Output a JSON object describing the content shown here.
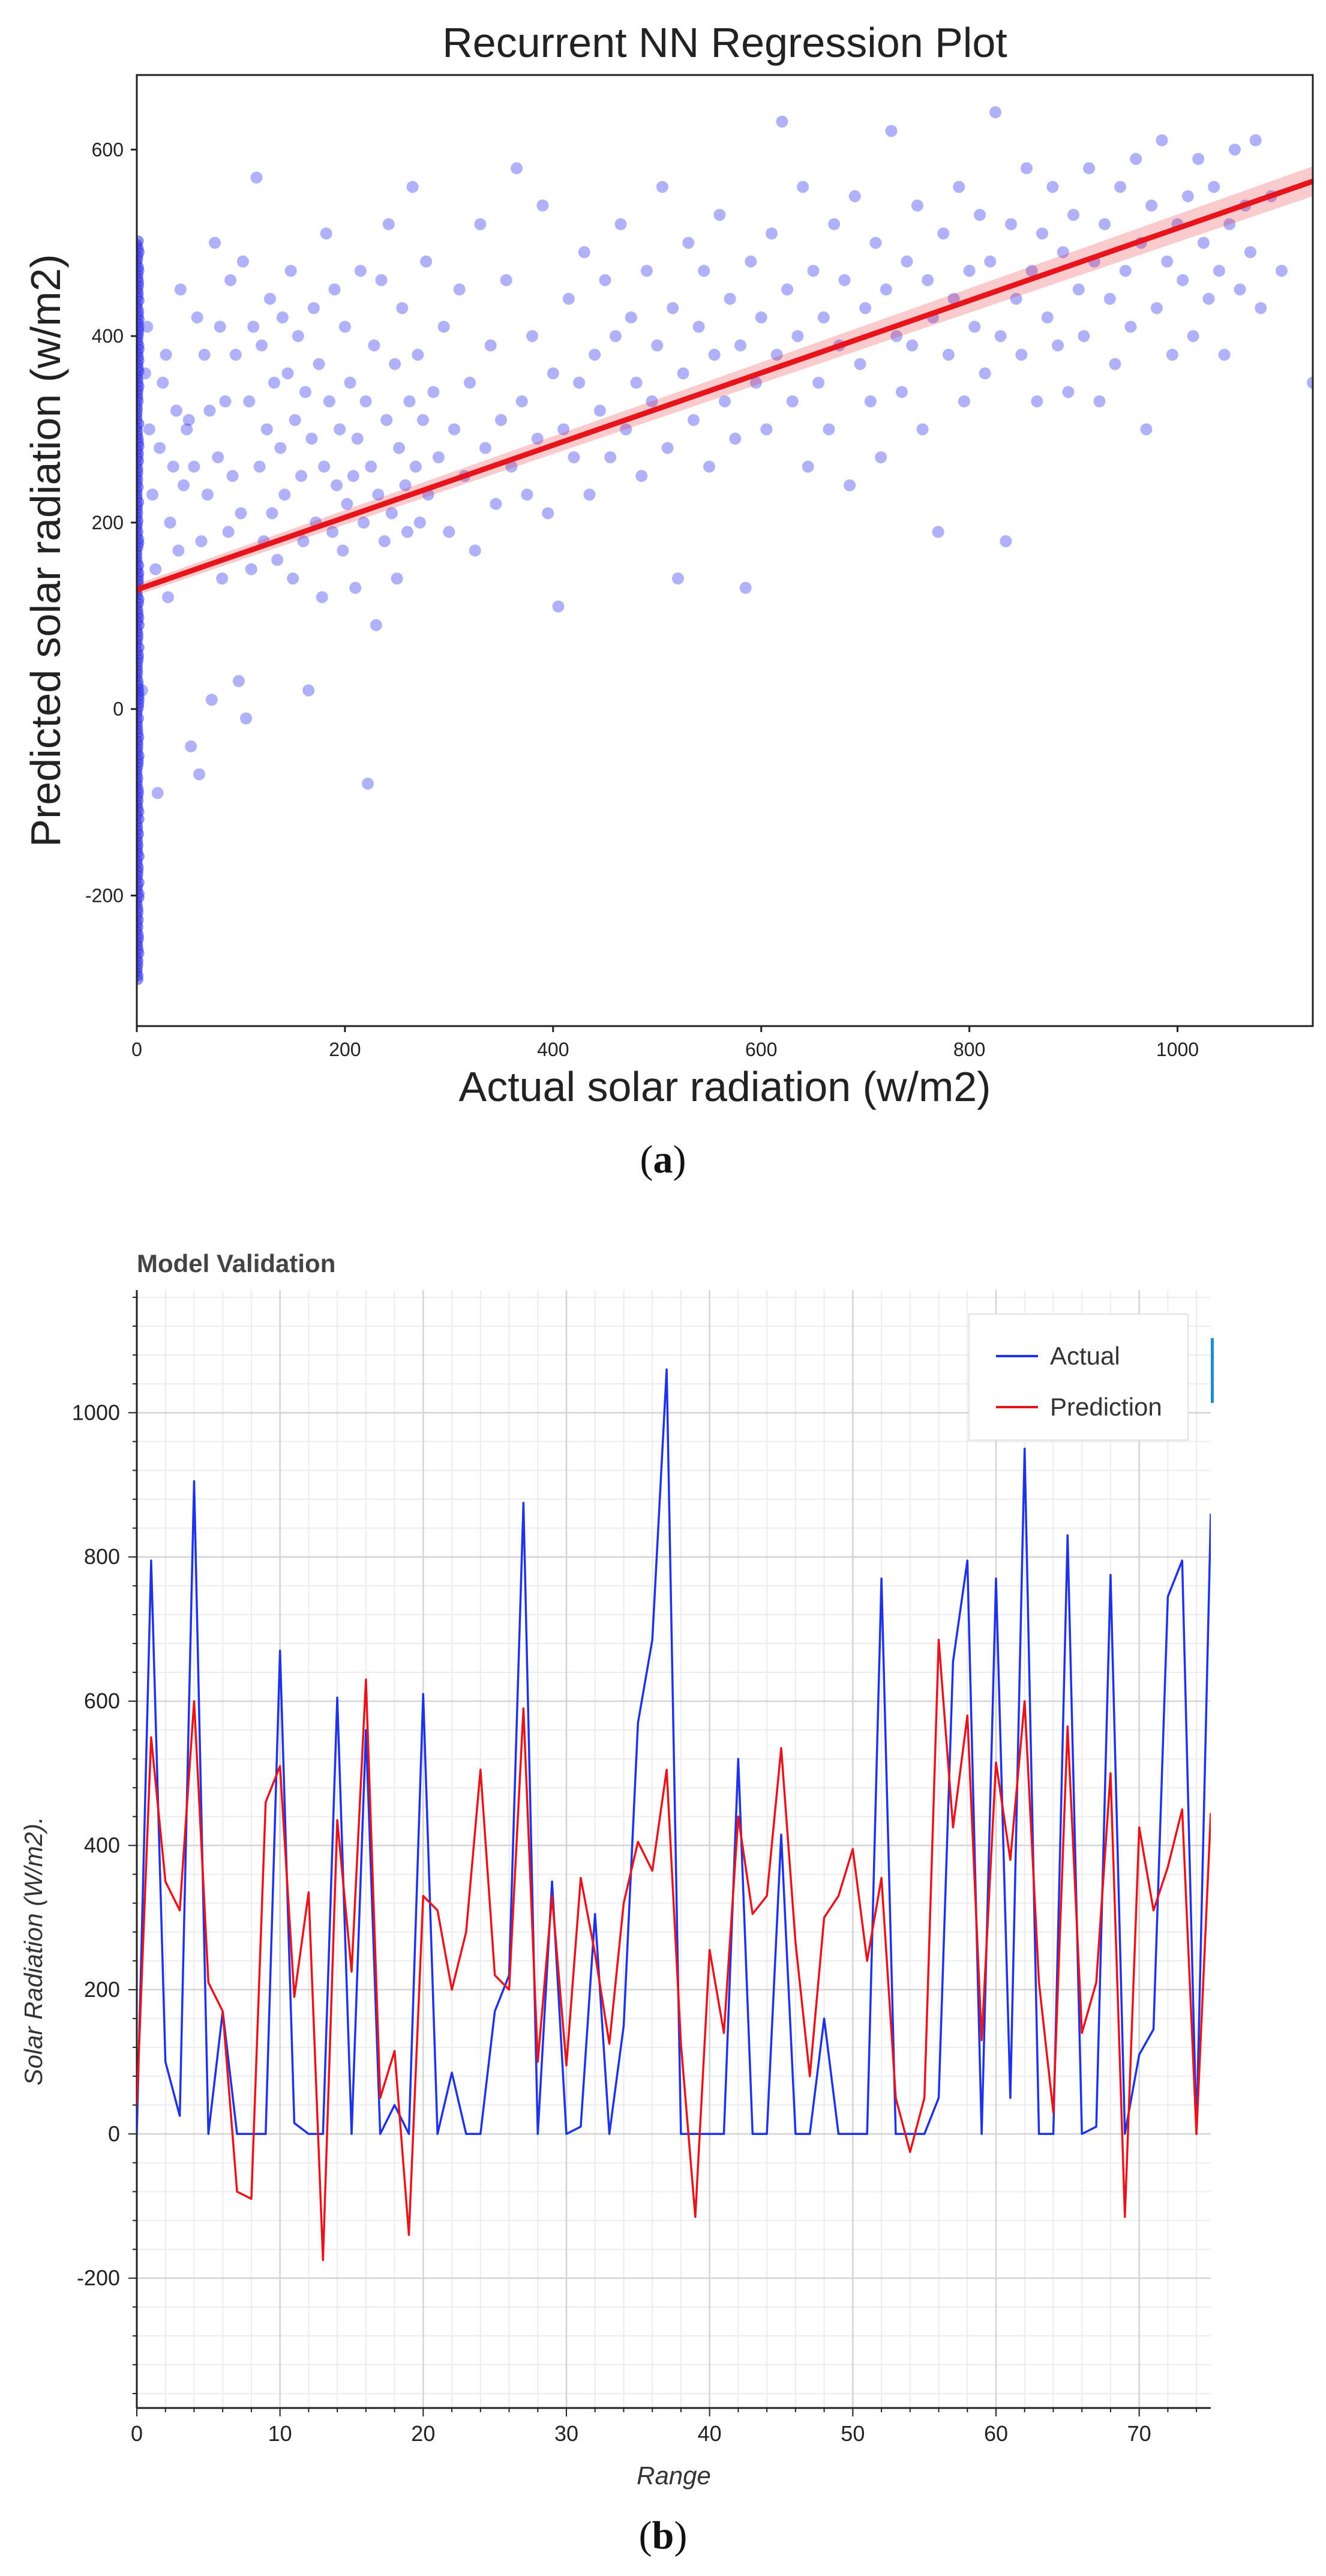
{
  "panels": {
    "a": {
      "label": "a"
    },
    "b": {
      "label": "b"
    }
  },
  "chart_data": [
    {
      "type": "scatter",
      "title": "Recurrent NN Regression Plot",
      "xlabel": "Actual solar radiation (w/m2)",
      "ylabel": "Predicted solar radiation (w/m2)",
      "xlim": [
        0,
        1130
      ],
      "ylim": [
        -340,
        680
      ],
      "xticks": [
        0,
        200,
        400,
        600,
        800,
        1000
      ],
      "yticks": [
        -200,
        0,
        200,
        400,
        600
      ],
      "grid": false,
      "point_color": "#3333ee",
      "regression": {
        "x": [
          0,
          1130
        ],
        "y": [
          128,
          566
        ],
        "color": "#e8141c"
      },
      "zero_column": {
        "x": 0,
        "y_min": -290,
        "y_max": 505
      },
      "points": [
        [
          5,
          20
        ],
        [
          8,
          360
        ],
        [
          10,
          410
        ],
        [
          12,
          300
        ],
        [
          15,
          230
        ],
        [
          18,
          150
        ],
        [
          20,
          -90
        ],
        [
          22,
          280
        ],
        [
          25,
          350
        ],
        [
          28,
          380
        ],
        [
          30,
          120
        ],
        [
          32,
          200
        ],
        [
          35,
          260
        ],
        [
          38,
          320
        ],
        [
          40,
          170
        ],
        [
          42,
          450
        ],
        [
          45,
          240
        ],
        [
          48,
          300
        ],
        [
          50,
          310
        ],
        [
          52,
          -40
        ],
        [
          55,
          260
        ],
        [
          58,
          420
        ],
        [
          60,
          -70
        ],
        [
          62,
          180
        ],
        [
          65,
          380
        ],
        [
          68,
          230
        ],
        [
          70,
          320
        ],
        [
          72,
          10
        ],
        [
          75,
          500
        ],
        [
          78,
          270
        ],
        [
          80,
          410
        ],
        [
          82,
          140
        ],
        [
          85,
          330
        ],
        [
          88,
          190
        ],
        [
          90,
          460
        ],
        [
          92,
          250
        ],
        [
          95,
          380
        ],
        [
          98,
          30
        ],
        [
          100,
          210
        ],
        [
          102,
          480
        ],
        [
          105,
          -10
        ],
        [
          108,
          330
        ],
        [
          110,
          150
        ],
        [
          112,
          410
        ],
        [
          115,
          570
        ],
        [
          118,
          260
        ],
        [
          120,
          390
        ],
        [
          122,
          180
        ],
        [
          125,
          300
        ],
        [
          128,
          440
        ],
        [
          130,
          210
        ],
        [
          132,
          350
        ],
        [
          135,
          160
        ],
        [
          138,
          280
        ],
        [
          140,
          420
        ],
        [
          142,
          230
        ],
        [
          145,
          360
        ],
        [
          148,
          470
        ],
        [
          150,
          140
        ],
        [
          152,
          310
        ],
        [
          155,
          400
        ],
        [
          158,
          250
        ],
        [
          160,
          180
        ],
        [
          162,
          340
        ],
        [
          165,
          20
        ],
        [
          168,
          290
        ],
        [
          170,
          430
        ],
        [
          172,
          200
        ],
        [
          175,
          370
        ],
        [
          178,
          120
        ],
        [
          180,
          260
        ],
        [
          182,
          510
        ],
        [
          185,
          330
        ],
        [
          188,
          190
        ],
        [
          190,
          450
        ],
        [
          192,
          240
        ],
        [
          195,
          300
        ],
        [
          198,
          170
        ],
        [
          200,
          410
        ],
        [
          202,
          220
        ],
        [
          205,
          350
        ],
        [
          208,
          250
        ],
        [
          210,
          130
        ],
        [
          212,
          290
        ],
        [
          215,
          470
        ],
        [
          218,
          200
        ],
        [
          220,
          330
        ],
        [
          222,
          -80
        ],
        [
          225,
          260
        ],
        [
          228,
          390
        ],
        [
          230,
          90
        ],
        [
          232,
          230
        ],
        [
          235,
          460
        ],
        [
          238,
          180
        ],
        [
          240,
          310
        ],
        [
          242,
          520
        ],
        [
          245,
          210
        ],
        [
          248,
          370
        ],
        [
          250,
          140
        ],
        [
          252,
          280
        ],
        [
          255,
          430
        ],
        [
          258,
          240
        ],
        [
          260,
          190
        ],
        [
          262,
          330
        ],
        [
          265,
          560
        ],
        [
          268,
          260
        ],
        [
          270,
          380
        ],
        [
          272,
          200
        ],
        [
          275,
          310
        ],
        [
          278,
          480
        ],
        [
          280,
          230
        ],
        [
          285,
          340
        ],
        [
          290,
          270
        ],
        [
          295,
          410
        ],
        [
          300,
          190
        ],
        [
          305,
          300
        ],
        [
          310,
          450
        ],
        [
          315,
          250
        ],
        [
          320,
          350
        ],
        [
          325,
          170
        ],
        [
          330,
          520
        ],
        [
          335,
          280
        ],
        [
          340,
          390
        ],
        [
          345,
          220
        ],
        [
          350,
          310
        ],
        [
          355,
          460
        ],
        [
          360,
          260
        ],
        [
          365,
          580
        ],
        [
          370,
          330
        ],
        [
          375,
          230
        ],
        [
          380,
          400
        ],
        [
          385,
          290
        ],
        [
          390,
          540
        ],
        [
          395,
          210
        ],
        [
          400,
          360
        ],
        [
          405,
          110
        ],
        [
          410,
          300
        ],
        [
          415,
          440
        ],
        [
          420,
          270
        ],
        [
          425,
          350
        ],
        [
          430,
          490
        ],
        [
          435,
          230
        ],
        [
          440,
          380
        ],
        [
          445,
          320
        ],
        [
          450,
          460
        ],
        [
          455,
          270
        ],
        [
          460,
          400
        ],
        [
          465,
          520
        ],
        [
          470,
          300
        ],
        [
          475,
          420
        ],
        [
          480,
          350
        ],
        [
          485,
          250
        ],
        [
          490,
          470
        ],
        [
          495,
          330
        ],
        [
          500,
          390
        ],
        [
          505,
          560
        ],
        [
          510,
          280
        ],
        [
          515,
          430
        ],
        [
          520,
          140
        ],
        [
          525,
          360
        ],
        [
          530,
          500
        ],
        [
          535,
          310
        ],
        [
          540,
          410
        ],
        [
          545,
          470
        ],
        [
          550,
          260
        ],
        [
          555,
          380
        ],
        [
          560,
          530
        ],
        [
          565,
          330
        ],
        [
          570,
          440
        ],
        [
          575,
          290
        ],
        [
          580,
          390
        ],
        [
          585,
          130
        ],
        [
          590,
          480
        ],
        [
          595,
          350
        ],
        [
          600,
          420
        ],
        [
          605,
          300
        ],
        [
          610,
          510
        ],
        [
          615,
          380
        ],
        [
          620,
          630
        ],
        [
          625,
          450
        ],
        [
          630,
          330
        ],
        [
          635,
          400
        ],
        [
          640,
          560
        ],
        [
          645,
          260
        ],
        [
          650,
          470
        ],
        [
          655,
          350
        ],
        [
          660,
          420
        ],
        [
          665,
          300
        ],
        [
          670,
          520
        ],
        [
          675,
          390
        ],
        [
          680,
          460
        ],
        [
          685,
          240
        ],
        [
          690,
          550
        ],
        [
          695,
          370
        ],
        [
          700,
          430
        ],
        [
          705,
          330
        ],
        [
          710,
          500
        ],
        [
          715,
          270
        ],
        [
          720,
          450
        ],
        [
          725,
          620
        ],
        [
          730,
          400
        ],
        [
          735,
          340
        ],
        [
          740,
          480
        ],
        [
          745,
          390
        ],
        [
          750,
          540
        ],
        [
          755,
          300
        ],
        [
          760,
          460
        ],
        [
          765,
          420
        ],
        [
          770,
          190
        ],
        [
          775,
          510
        ],
        [
          780,
          380
        ],
        [
          785,
          440
        ],
        [
          790,
          560
        ],
        [
          795,
          330
        ],
        [
          800,
          470
        ],
        [
          805,
          410
        ],
        [
          810,
          530
        ],
        [
          815,
          360
        ],
        [
          820,
          480
        ],
        [
          825,
          640
        ],
        [
          830,
          400
        ],
        [
          835,
          180
        ],
        [
          840,
          520
        ],
        [
          845,
          440
        ],
        [
          850,
          380
        ],
        [
          855,
          580
        ],
        [
          860,
          470
        ],
        [
          865,
          330
        ],
        [
          870,
          510
        ],
        [
          875,
          420
        ],
        [
          880,
          560
        ],
        [
          885,
          390
        ],
        [
          890,
          490
        ],
        [
          895,
          340
        ],
        [
          900,
          530
        ],
        [
          905,
          450
        ],
        [
          910,
          400
        ],
        [
          915,
          580
        ],
        [
          920,
          480
        ],
        [
          925,
          330
        ],
        [
          930,
          520
        ],
        [
          935,
          440
        ],
        [
          940,
          370
        ],
        [
          945,
          560
        ],
        [
          950,
          470
        ],
        [
          955,
          410
        ],
        [
          960,
          590
        ],
        [
          965,
          500
        ],
        [
          970,
          300
        ],
        [
          975,
          540
        ],
        [
          980,
          430
        ],
        [
          985,
          610
        ],
        [
          990,
          480
        ],
        [
          995,
          380
        ],
        [
          1000,
          520
        ],
        [
          1005,
          460
        ],
        [
          1010,
          550
        ],
        [
          1015,
          400
        ],
        [
          1020,
          590
        ],
        [
          1025,
          500
        ],
        [
          1030,
          440
        ],
        [
          1035,
          560
        ],
        [
          1040,
          470
        ],
        [
          1045,
          380
        ],
        [
          1050,
          520
        ],
        [
          1055,
          600
        ],
        [
          1060,
          450
        ],
        [
          1065,
          540
        ],
        [
          1070,
          490
        ],
        [
          1075,
          610
        ],
        [
          1080,
          430
        ],
        [
          1090,
          550
        ],
        [
          1100,
          470
        ],
        [
          1130,
          350
        ]
      ]
    },
    {
      "type": "line",
      "title": "Model Validation",
      "xlabel": "Range",
      "ylabel": "Solar Radiation (W/m2).",
      "xlim": [
        0,
        75
      ],
      "ylim": [
        -380,
        1170
      ],
      "xticks": [
        0,
        10,
        20,
        30,
        40,
        50,
        60,
        70
      ],
      "yticks": [
        -200,
        0,
        200,
        400,
        600,
        800,
        1000
      ],
      "grid": true,
      "legend": "top-right",
      "x": [
        0,
        1,
        2,
        3,
        4,
        5,
        6,
        7,
        8,
        9,
        10,
        11,
        12,
        13,
        14,
        15,
        16,
        17,
        18,
        19,
        20,
        21,
        22,
        23,
        24,
        25,
        26,
        27,
        28,
        29,
        30,
        31,
        32,
        33,
        34,
        35,
        36,
        37,
        38,
        39,
        40,
        41,
        42,
        43,
        44,
        45,
        46,
        47,
        48,
        49,
        50,
        51,
        52,
        53,
        54,
        55,
        56,
        57,
        58,
        59,
        60,
        61,
        62,
        63,
        64,
        65,
        66,
        67,
        68,
        69,
        70,
        71,
        72,
        73,
        74,
        75
      ],
      "series": [
        {
          "name": "Actual",
          "color": "#1f33e6",
          "values": [
            0,
            795,
            100,
            25,
            905,
            0,
            170,
            0,
            0,
            0,
            670,
            15,
            0,
            0,
            605,
            0,
            560,
            0,
            40,
            0,
            610,
            0,
            85,
            0,
            0,
            170,
            220,
            875,
            0,
            350,
            0,
            10,
            305,
            0,
            150,
            570,
            685,
            1060,
            0,
            0,
            0,
            0,
            520,
            0,
            0,
            415,
            0,
            0,
            160,
            0,
            0,
            0,
            770,
            0,
            0,
            0,
            50,
            655,
            795,
            0,
            770,
            50,
            950,
            0,
            0,
            830,
            0,
            10,
            775,
            0,
            110,
            145,
            745,
            795,
            0,
            860
          ]
        },
        {
          "name": "Prediction",
          "color": "#e8141c",
          "values": [
            40,
            550,
            350,
            310,
            600,
            210,
            170,
            -80,
            -90,
            460,
            510,
            190,
            335,
            -175,
            435,
            225,
            630,
            50,
            115,
            -140,
            330,
            310,
            200,
            280,
            505,
            220,
            200,
            590,
            100,
            330,
            95,
            355,
            250,
            125,
            320,
            405,
            365,
            505,
            125,
            -115,
            255,
            140,
            440,
            305,
            330,
            535,
            265,
            80,
            300,
            330,
            395,
            240,
            355,
            50,
            -25,
            50,
            685,
            425,
            580,
            130,
            515,
            380,
            600,
            210,
            30,
            565,
            140,
            210,
            500,
            -115,
            425,
            310,
            370,
            450,
            0,
            445
          ]
        }
      ]
    }
  ]
}
